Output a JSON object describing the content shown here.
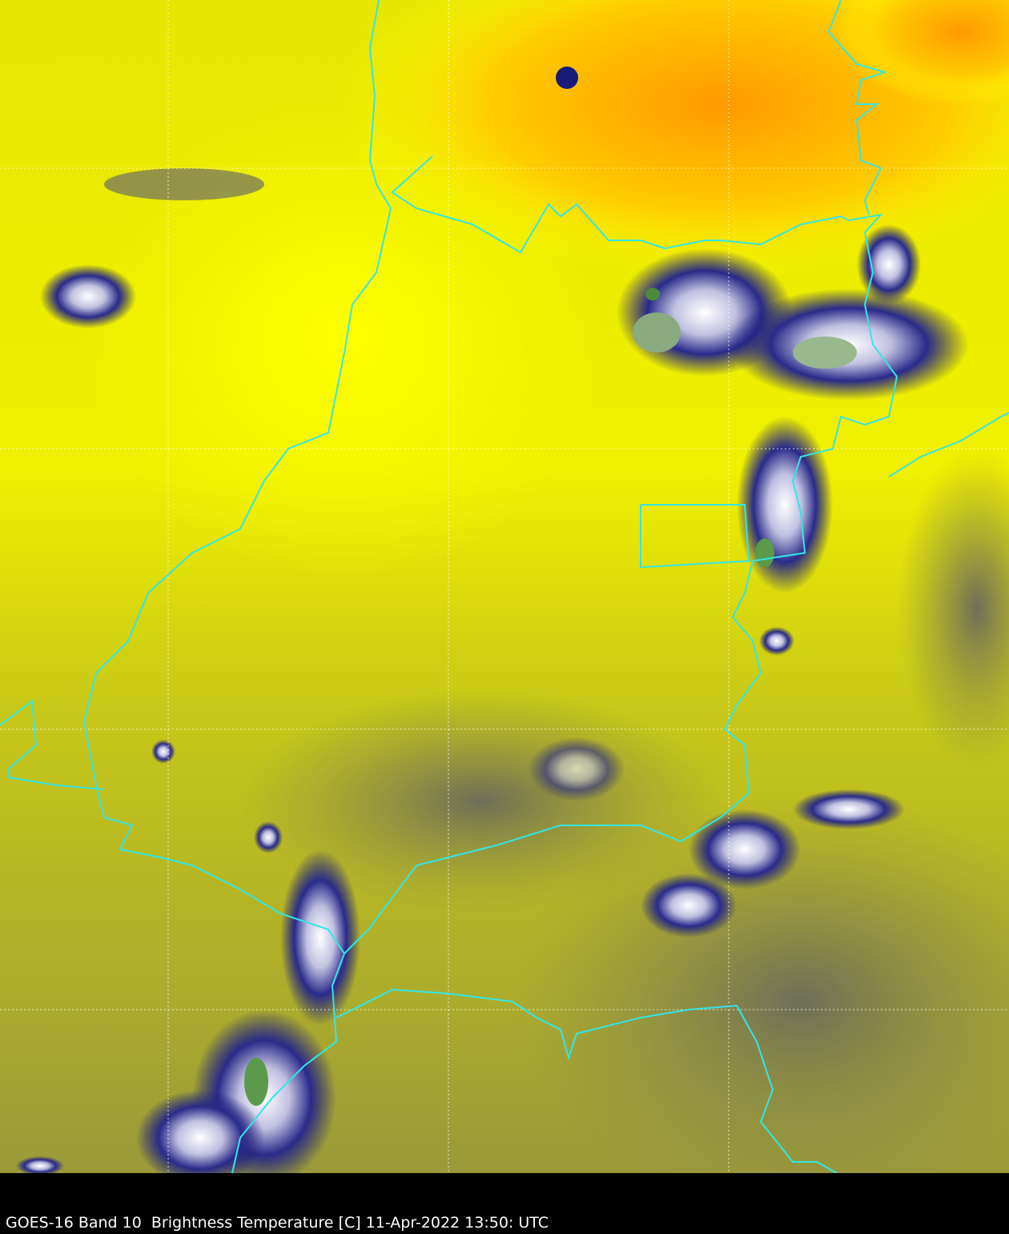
{
  "caption": "GOES-16 Band 10  Brightness Temperature [C] 11-Apr-2022 13:50: UTC",
  "colors": {
    "warm": "#ffff00",
    "hot": "#ff9900",
    "mid": "#c8c818",
    "cool": "#8c8c4a",
    "cloud_cold": "#1a1a7a",
    "cloud_colder": "#ffffff",
    "cloud_coldest": "#4a8a3a",
    "borders": "#33e6e6",
    "grid": "#ffffff"
  }
}
